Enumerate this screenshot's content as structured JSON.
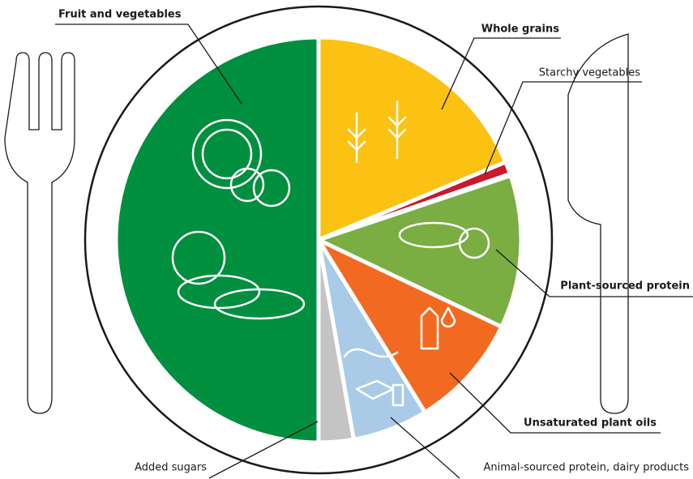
{
  "labels": {
    "fruit_vegetables": "Fruit and vegetables",
    "whole_grains": "Whole grains",
    "starchy_vegetables": "Starchy vegetables",
    "plant_protein": "Plant-sourced protein",
    "plant_oils": "Unsaturated plant oils",
    "animal_protein": "Animal-sourced protein, dairy products",
    "added_sugars": "Added sugars"
  }
}
